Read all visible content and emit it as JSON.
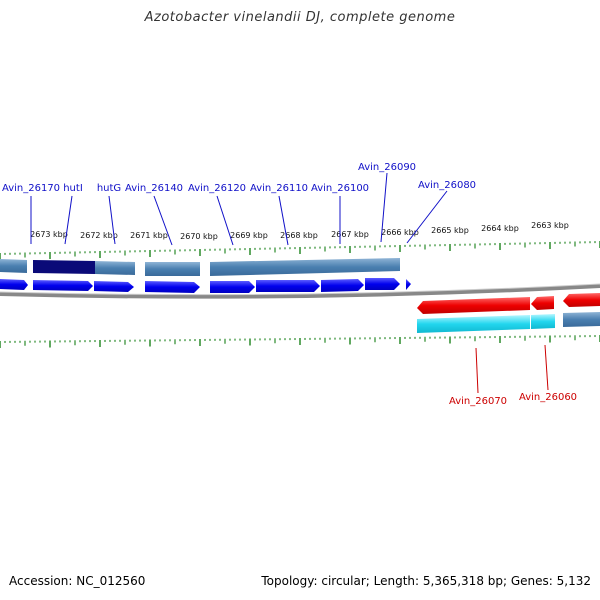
{
  "title": "Azotobacter vinelandii DJ, complete genome",
  "footer": {
    "accession": "Accession: NC_012560",
    "summary": "Topology: circular; Length: 5,365,318 bp; Genes: 5,132"
  },
  "scale_labels": [
    "2673 kbp",
    "2672 kbp",
    "2671 kbp",
    "2670 kbp",
    "2669 kbp",
    "2668 kbp",
    "2667 kbp",
    "2666 kbp",
    "2665 kbp",
    "2664 kbp",
    "2663 kbp"
  ],
  "forward_genes": [
    "Avin_26170",
    "hutI",
    "hutG",
    "Avin_26140",
    "Avin_26120",
    "Avin_26110",
    "Avin_26100",
    "Avin_26090",
    "Avin_26080"
  ],
  "reverse_genes": [
    "Avin_26070",
    "Avin_26060"
  ],
  "colors": {
    "forward_gene": "#0000ee",
    "forward_label": "#1010c8",
    "reverse_gene": "#ee0000",
    "reverse_label": "#cc0000",
    "cds_forward": "#4a7fb0",
    "cds_forward_dark": "#0a0a78",
    "cds_reverse": "#22d6ee",
    "tick": "#2a8a2a"
  }
}
